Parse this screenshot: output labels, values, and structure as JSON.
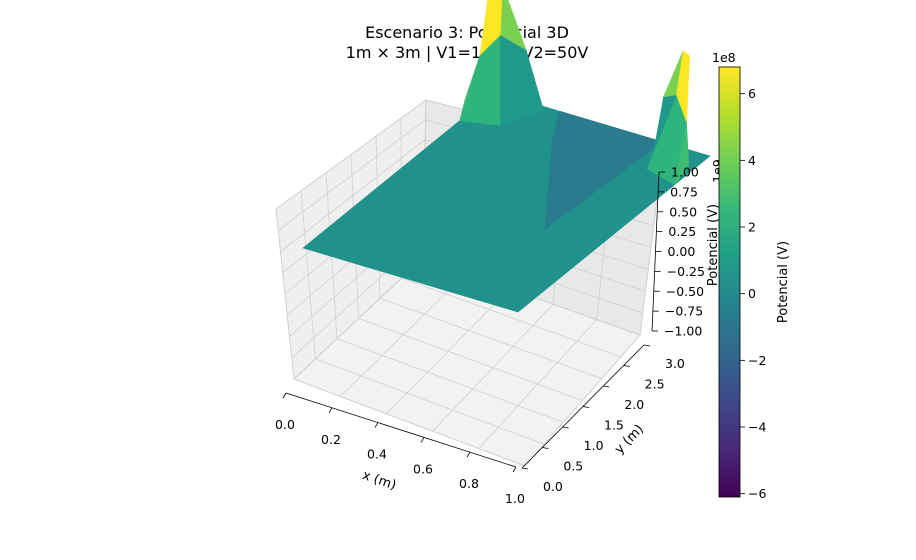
{
  "chart_data": {
    "type": "surface3d",
    "title": "Escenario 3: Potencial 3D",
    "subtitle": "1m × 3m | V1=100V, V2=50V",
    "xlabel": "x (m)",
    "ylabel": "y (m)",
    "zlabel": "Potencial (V)",
    "z_offset_text": "1e9",
    "xlim": [
      0,
      1
    ],
    "ylim": [
      0,
      3
    ],
    "zlim": [
      -1,
      1
    ],
    "x_ticks": [
      "0.0",
      "0.2",
      "0.4",
      "0.6",
      "0.8",
      "1.0"
    ],
    "y_ticks": [
      "0.0",
      "0.5",
      "1.0",
      "1.5",
      "2.0",
      "2.5",
      "3.0"
    ],
    "z_ticks": [
      "−1.00",
      "−0.75",
      "−0.50",
      "−0.25",
      "0.00",
      "0.25",
      "0.50",
      "0.75",
      "1.00"
    ],
    "grid": true,
    "colormap": "viridis",
    "peaks": [
      {
        "x": 0.0,
        "y": 3.0,
        "z_max": 680000000.0
      },
      {
        "x": 1.0,
        "y": 3.0,
        "z_max": 680000000.0
      }
    ],
    "trough": {
      "x": 0.5,
      "y": 2.1,
      "z_min": -610000000.0
    },
    "baseline_z": 0,
    "colorbar": {
      "label": "Potencial (V)",
      "offset_text": "1e8",
      "range": [
        -6.1,
        6.8
      ],
      "ticks": [
        "6",
        "4",
        "2",
        "0",
        "−2",
        "−4",
        "−6"
      ],
      "colors": [
        "#440154",
        "#482878",
        "#3e4989",
        "#31688e",
        "#26828e",
        "#1f9e89",
        "#35b779",
        "#6ece58",
        "#b5de2b",
        "#fde725"
      ]
    }
  }
}
